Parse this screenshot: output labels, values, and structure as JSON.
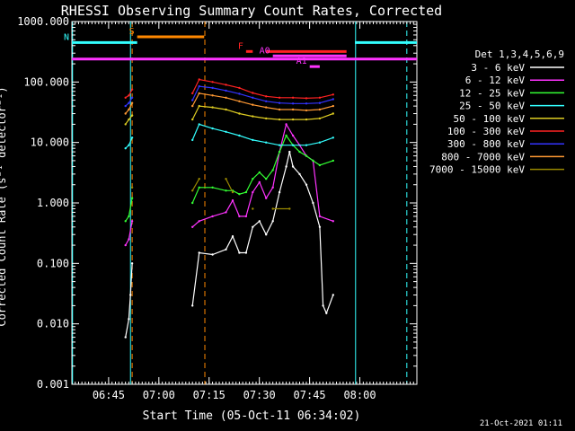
{
  "chart_data": {
    "type": "line",
    "title": "RHESSI Observing Summary Count Rates, Corrected",
    "xlabel": "Start Time (05-Oct-11 06:34:02)",
    "ylabel": "Corrected Count Rate (s⁻¹ detector⁻¹)",
    "yscale": "log",
    "ylim": [
      0.001,
      1000
    ],
    "xlim_minutes": [
      0,
      103
    ],
    "y_ticks": [
      "1000.000",
      "100.000",
      "10.000",
      "1.000",
      "0.100",
      "0.010",
      "0.001"
    ],
    "x_ticks": [
      {
        "label": "06:45",
        "minute": 10.97
      },
      {
        "label": "07:00",
        "minute": 25.97
      },
      {
        "label": "07:15",
        "minute": 40.97
      },
      {
        "label": "07:30",
        "minute": 55.97
      },
      {
        "label": "07:45",
        "minute": 70.97
      },
      {
        "label": "08:00",
        "minute": 85.97
      }
    ],
    "legend_title": "Det 1,3,4,5,6,9",
    "legend_position": "right",
    "series": [
      {
        "name": "3 - 6 keV",
        "color": "#ffffff",
        "points": [
          [
            16,
            0.006
          ],
          [
            17,
            0.012
          ],
          [
            17.5,
            0.03
          ],
          [
            18,
            0.1
          ],
          [
            36,
            0.02
          ],
          [
            38,
            0.15
          ],
          [
            42,
            0.14
          ],
          [
            46,
            0.17
          ],
          [
            48,
            0.28
          ],
          [
            50,
            0.15
          ],
          [
            52,
            0.15
          ],
          [
            54,
            0.4
          ],
          [
            56,
            0.5
          ],
          [
            58,
            0.3
          ],
          [
            60,
            0.5
          ],
          [
            62,
            1.5
          ],
          [
            64,
            4
          ],
          [
            65,
            7
          ],
          [
            66,
            4
          ],
          [
            68,
            3
          ],
          [
            70,
            2
          ],
          [
            72,
            1
          ],
          [
            74,
            0.4
          ],
          [
            75,
            0.02
          ],
          [
            76,
            0.015
          ],
          [
            78,
            0.03
          ]
        ]
      },
      {
        "name": "6 - 12 keV",
        "color": "#ff33ff",
        "points": [
          [
            16,
            0.2
          ],
          [
            17,
            0.25
          ],
          [
            18,
            0.5
          ],
          [
            36,
            0.4
          ],
          [
            38,
            0.5
          ],
          [
            42,
            0.6
          ],
          [
            46,
            0.7
          ],
          [
            48,
            1.1
          ],
          [
            50,
            0.6
          ],
          [
            52,
            0.6
          ],
          [
            54,
            1.5
          ],
          [
            56,
            2.2
          ],
          [
            58,
            1.2
          ],
          [
            60,
            1.8
          ],
          [
            62,
            7
          ],
          [
            64,
            20
          ],
          [
            66,
            13
          ],
          [
            68,
            9
          ],
          [
            70,
            6
          ],
          [
            72,
            5
          ],
          [
            74,
            0.6
          ],
          [
            78,
            0.5
          ]
        ]
      },
      {
        "name": "12 - 25 keV",
        "color": "#33ff33",
        "points": [
          [
            16,
            0.5
          ],
          [
            17,
            0.6
          ],
          [
            18,
            1.2
          ],
          [
            36,
            1.0
          ],
          [
            38,
            1.8
          ],
          [
            42,
            1.8
          ],
          [
            46,
            1.6
          ],
          [
            48,
            1.6
          ],
          [
            50,
            1.4
          ],
          [
            52,
            1.5
          ],
          [
            54,
            2.5
          ],
          [
            56,
            3.2
          ],
          [
            58,
            2.5
          ],
          [
            60,
            3.5
          ],
          [
            62,
            7
          ],
          [
            64,
            13
          ],
          [
            66,
            9
          ],
          [
            68,
            7
          ],
          [
            70,
            6
          ],
          [
            72,
            5
          ],
          [
            74,
            4.2
          ],
          [
            78,
            5
          ]
        ]
      },
      {
        "name": "25 - 50 keV",
        "color": "#33ffff",
        "points": [
          [
            16,
            8
          ],
          [
            17,
            9
          ],
          [
            18,
            12
          ],
          [
            36,
            11
          ],
          [
            38,
            20
          ],
          [
            42,
            17
          ],
          [
            46,
            15
          ],
          [
            50,
            13
          ],
          [
            54,
            11
          ],
          [
            58,
            10
          ],
          [
            62,
            9
          ],
          [
            66,
            9
          ],
          [
            70,
            9
          ],
          [
            74,
            10
          ],
          [
            78,
            12
          ]
        ]
      },
      {
        "name": "50 - 100 keV",
        "color": "#ddcc22",
        "points": [
          [
            16,
            20
          ],
          [
            17,
            24
          ],
          [
            18,
            28
          ],
          [
            36,
            24
          ],
          [
            38,
            40
          ],
          [
            42,
            38
          ],
          [
            46,
            35
          ],
          [
            50,
            30
          ],
          [
            54,
            27
          ],
          [
            58,
            25
          ],
          [
            62,
            24
          ],
          [
            66,
            24
          ],
          [
            70,
            24
          ],
          [
            74,
            25
          ],
          [
            78,
            30
          ]
        ]
      },
      {
        "name": "100 - 300 keV",
        "color": "#ff2222",
        "points": [
          [
            16,
            55
          ],
          [
            17,
            60
          ],
          [
            18,
            75
          ],
          [
            36,
            65
          ],
          [
            38,
            110
          ],
          [
            42,
            100
          ],
          [
            46,
            90
          ],
          [
            50,
            80
          ],
          [
            54,
            66
          ],
          [
            58,
            58
          ],
          [
            62,
            55
          ],
          [
            66,
            55
          ],
          [
            70,
            54
          ],
          [
            74,
            55
          ],
          [
            78,
            62
          ]
        ]
      },
      {
        "name": "300 - 800 keV",
        "color": "#3333ff",
        "points": [
          [
            16,
            40
          ],
          [
            17,
            45
          ],
          [
            18,
            55
          ],
          [
            36,
            50
          ],
          [
            38,
            85
          ],
          [
            42,
            80
          ],
          [
            46,
            72
          ],
          [
            50,
            64
          ],
          [
            54,
            55
          ],
          [
            58,
            48
          ],
          [
            62,
            45
          ],
          [
            66,
            44
          ],
          [
            70,
            44
          ],
          [
            74,
            45
          ],
          [
            78,
            52
          ]
        ]
      },
      {
        "name": "800 - 7000 keV",
        "color": "#ff9933",
        "points": [
          [
            16,
            30
          ],
          [
            17,
            35
          ],
          [
            18,
            45
          ],
          [
            36,
            40
          ],
          [
            38,
            65
          ],
          [
            42,
            60
          ],
          [
            46,
            55
          ],
          [
            50,
            48
          ],
          [
            54,
            42
          ],
          [
            58,
            38
          ],
          [
            62,
            35
          ],
          [
            66,
            35
          ],
          [
            70,
            34
          ],
          [
            74,
            35
          ],
          [
            78,
            40
          ]
        ]
      },
      {
        "name": "7000 - 15000 keV",
        "color": "#998800",
        "points": [
          [
            18,
            1.8
          ],
          [
            36,
            1.6
          ],
          [
            38,
            2.5
          ],
          [
            46,
            2.5
          ],
          [
            48,
            1.5
          ],
          [
            54,
            0.8
          ],
          [
            60,
            0.8
          ],
          [
            65,
            0.8
          ]
        ]
      }
    ],
    "flag_bars": [
      {
        "label": "S",
        "color": "#ff8800",
        "x0": 19.5,
        "x1": 39.5,
        "y": 560
      },
      {
        "label": "N",
        "color": "#33ffff",
        "x0": 0,
        "x1": 19.5,
        "y": 450
      },
      {
        "label": "",
        "color": "#33ffff",
        "x0": 84.5,
        "x1": 103,
        "y": 450
      },
      {
        "label": "",
        "color": "#ff33ff",
        "x0": 0,
        "x1": 103,
        "y": 240
      },
      {
        "label": "F",
        "color": "#ff2222",
        "x0": 52,
        "x1": 54,
        "y": 320
      },
      {
        "label": "",
        "color": "#ff2222",
        "x0": 58,
        "x1": 82,
        "y": 320
      },
      {
        "label": "A0",
        "color": "#ff33ff",
        "x0": 60,
        "x1": 82,
        "y": 270
      },
      {
        "label": "A1",
        "color": "#ff33ff",
        "x0": 71,
        "x1": 74,
        "y": 180
      }
    ],
    "vertical_lines": [
      {
        "x": 17.5,
        "color": "#33ffff",
        "style": "solid"
      },
      {
        "x": 18,
        "color": "#ff8800",
        "style": "dashed"
      },
      {
        "x": 39.7,
        "color": "#ff8800",
        "style": "dashed"
      },
      {
        "x": 84.7,
        "color": "#33ffff",
        "style": "solid"
      },
      {
        "x": 100,
        "color": "#33ffff",
        "style": "dashed"
      },
      {
        "x": 0.2,
        "color": "#33ffff",
        "style": "solid"
      }
    ]
  },
  "footer_date": "21-Oct-2021 01:11"
}
